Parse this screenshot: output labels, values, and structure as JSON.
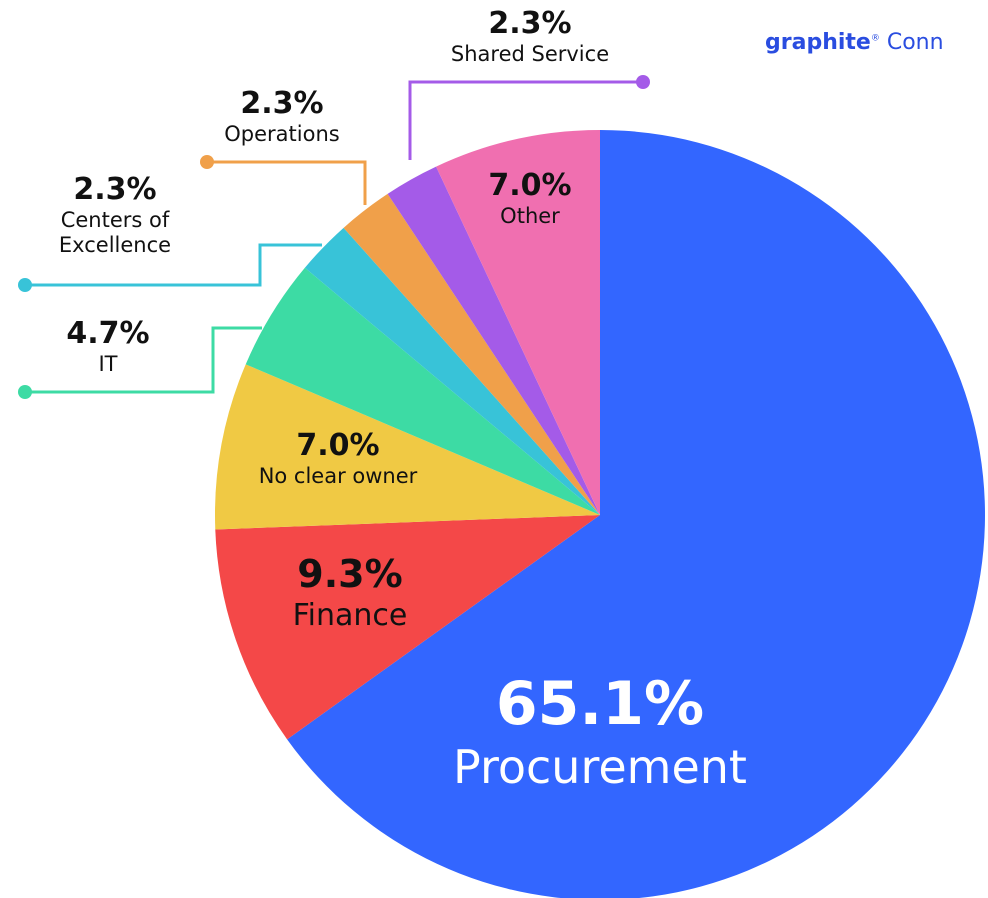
{
  "chart_data": {
    "type": "pie",
    "brand": "graphite",
    "brand_suffix": "Conn",
    "categories": [
      "Procurement",
      "Finance",
      "No clear owner",
      "IT",
      "Centers of Excellence",
      "Operations",
      "Shared Service",
      "Other"
    ],
    "values": [
      65.1,
      9.3,
      7.0,
      4.7,
      2.3,
      2.3,
      2.3,
      7.0
    ],
    "value_labels": [
      "65.1%",
      "9.3%",
      "7.0%",
      "4.7%",
      "2.3%",
      "2.3%",
      "2.3%",
      "7.0%"
    ],
    "colors": [
      "#3366ff",
      "#f44848",
      "#f0c944",
      "#3ddba4",
      "#38c3d8",
      "#f0a04a",
      "#a45be8",
      "#f06fb0"
    ]
  }
}
